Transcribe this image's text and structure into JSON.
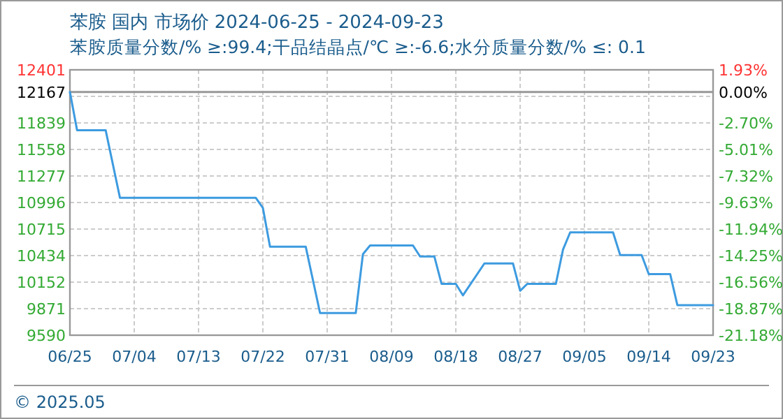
{
  "chart_data": {
    "type": "line",
    "title": "苯胺 国内 市场价 2024-06-25 - 2024-09-23",
    "subtitle": "苯胺质量分数/% ≥:99.4;干品结晶点/℃  ≥:-6.6;水分质量分数/%  ≤: 0.1",
    "x": [
      "2024-06-25",
      "2024-06-26",
      "2024-06-30",
      "2024-07-02",
      "2024-07-21",
      "2024-07-22",
      "2024-07-23",
      "2024-07-28",
      "2024-07-30",
      "2024-08-04",
      "2024-08-05",
      "2024-08-06",
      "2024-08-12",
      "2024-08-13",
      "2024-08-15",
      "2024-08-16",
      "2024-08-18",
      "2024-08-19",
      "2024-08-22",
      "2024-08-26",
      "2024-08-27",
      "2024-08-28",
      "2024-09-01",
      "2024-09-02",
      "2024-09-03",
      "2024-09-09",
      "2024-09-10",
      "2024-09-13",
      "2024-09-14",
      "2024-09-17",
      "2024-09-18",
      "2024-09-23"
    ],
    "series": [
      {
        "color": "#3d9be0",
        "values": [
          12167,
          11762,
          11762,
          11046,
          11046,
          10939,
          10527,
          10527,
          9825,
          9825,
          10448,
          10541,
          10541,
          10424,
          10424,
          10134,
          10134,
          10012,
          10350,
          10350,
          10061,
          10134,
          10134,
          10497,
          10679,
          10679,
          10439,
          10439,
          10237,
          10237,
          9909,
          9909
        ]
      }
    ],
    "xlim": [
      "2024-06-25",
      "2024-09-23"
    ],
    "xticks": [
      {
        "value": "2024-06-25",
        "label": "06/25"
      },
      {
        "value": "2024-07-04",
        "label": "07/04"
      },
      {
        "value": "2024-07-13",
        "label": "07/13"
      },
      {
        "value": "2024-07-22",
        "label": "07/22"
      },
      {
        "value": "2024-07-31",
        "label": "07/31"
      },
      {
        "value": "2024-08-09",
        "label": "08/09"
      },
      {
        "value": "2024-08-18",
        "label": "08/18"
      },
      {
        "value": "2024-08-27",
        "label": "08/27"
      },
      {
        "value": "2024-09-05",
        "label": "09/05"
      },
      {
        "value": "2024-09-14",
        "label": "09/14"
      },
      {
        "value": "2024-09-23",
        "label": "09/23"
      }
    ],
    "ylim": [
      9590,
      12401
    ],
    "yticks": [
      9590,
      9871,
      10152,
      10434,
      10715,
      10996,
      11277,
      11558,
      11839,
      {
        "value": 12120,
        "label": null
      },
      12167,
      12401
    ],
    "y2lim": [
      -21.18,
      1.93
    ],
    "y2ticks": [
      {
        "value": -21.18,
        "label": "-21.18%"
      },
      {
        "value": -18.87,
        "label": "-18.87%"
      },
      {
        "value": -16.56,
        "label": "-16.56%"
      },
      {
        "value": -14.25,
        "label": "-14.25%"
      },
      {
        "value": -11.94,
        "label": "-11.94%"
      },
      {
        "value": -9.63,
        "label": "-9.63%"
      },
      {
        "value": -7.32,
        "label": "-7.32%"
      },
      {
        "value": -5.01,
        "label": "-5.01%"
      },
      {
        "value": -2.7,
        "label": "-2.70%"
      },
      {
        "value": 0,
        "label": "0.00%"
      },
      {
        "value": 1.93,
        "label": "1.93%"
      }
    ],
    "ref_lines": [
      {
        "axis": "y",
        "value": 12167,
        "color": "#999999"
      }
    ],
    "grid": true,
    "marker": "none",
    "line_style": "solid",
    "annotations": [
      "© 2025.05"
    ]
  }
}
